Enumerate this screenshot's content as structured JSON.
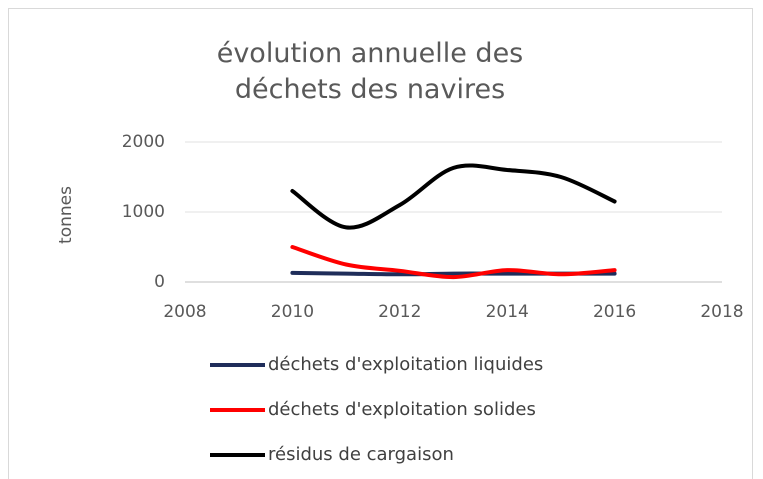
{
  "chart_data": {
    "type": "line",
    "title": "évolution annuelle des déchets des navires",
    "y_label": "tonnes",
    "x": [
      2010,
      2011,
      2012,
      2013,
      2014,
      2015,
      2016
    ],
    "series": [
      {
        "name": "déchets d'exploitation liquides",
        "color": "#1f2d5a",
        "values": [
          130,
          120,
          110,
          120,
          120,
          120,
          120
        ]
      },
      {
        "name": "déchets d'exploitation solides",
        "color": "#ff0000",
        "values": [
          500,
          250,
          160,
          70,
          170,
          110,
          170
        ]
      },
      {
        "name": "résidus de cargaison",
        "color": "#000000",
        "values": [
          1300,
          780,
          1100,
          1630,
          1600,
          1500,
          1150
        ]
      }
    ],
    "xlim": [
      2008,
      2018
    ],
    "xticks": [
      2008,
      2010,
      2012,
      2014,
      2016,
      2018
    ],
    "ylim": [
      0,
      2000
    ],
    "yticks": [
      0,
      1000,
      2000
    ],
    "grid": true,
    "smooth": true,
    "legend": "bottom"
  }
}
